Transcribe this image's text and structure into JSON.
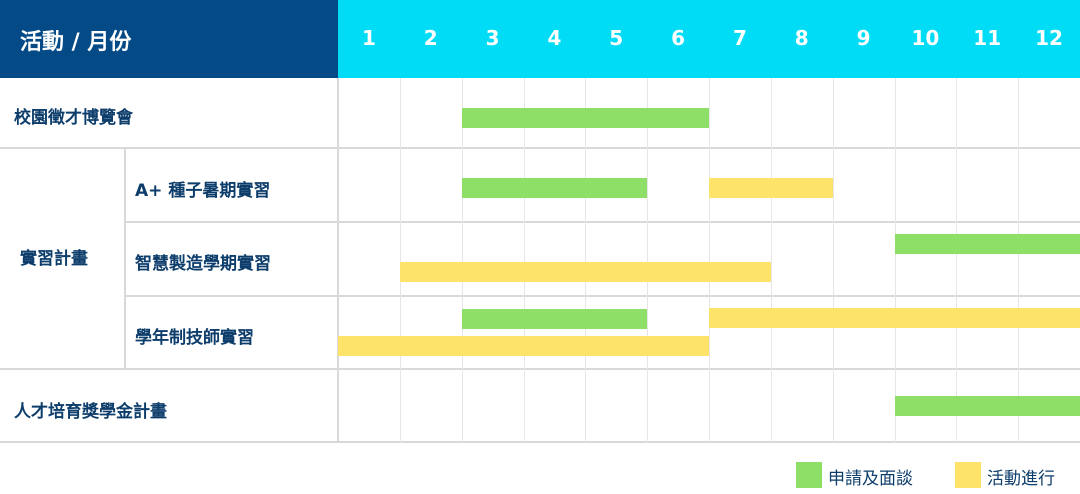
{
  "header": {
    "title": "活動 / 月份",
    "months": [
      "1",
      "2",
      "3",
      "4",
      "5",
      "6",
      "7",
      "8",
      "9",
      "10",
      "11",
      "12"
    ]
  },
  "rows": {
    "campus_fair": "校園徵才博覽會",
    "internship_group": "實習計畫",
    "a_plus": "A+ 種子暑期實習",
    "smart_mfg": "智慧製造學期實習",
    "year_tech": "學年制技師實習",
    "scholarship": "人才培育獎學金計畫"
  },
  "colors": {
    "header_left": "#034a86",
    "header_right": "#00dcf5",
    "apply": "#8ddf68",
    "activity": "#fde36a"
  },
  "bars": [
    {
      "row": "校園徵才博覽會",
      "type": "apply",
      "start": 3,
      "end": 6
    },
    {
      "row": "A+ 種子暑期實習",
      "type": "apply",
      "start": 3,
      "end": 5
    },
    {
      "row": "A+ 種子暑期實習",
      "type": "activity",
      "start": 7,
      "end": 8
    },
    {
      "row": "智慧製造學期實習",
      "type": "apply",
      "start": 10,
      "end": 12
    },
    {
      "row": "智慧製造學期實習",
      "type": "activity",
      "start": 2,
      "end": 7
    },
    {
      "row": "學年制技師實習",
      "type": "apply",
      "start": 3,
      "end": 5
    },
    {
      "row": "學年制技師實習",
      "type": "activity",
      "start": 7,
      "end": 12
    },
    {
      "row": "學年制技師實習",
      "type": "activity",
      "start": 1,
      "end": 6
    },
    {
      "row": "人才培育獎學金計畫",
      "type": "apply",
      "start": 10,
      "end": 12
    }
  ],
  "legend": {
    "apply": "申請及面談",
    "activity": "活動進行"
  }
}
